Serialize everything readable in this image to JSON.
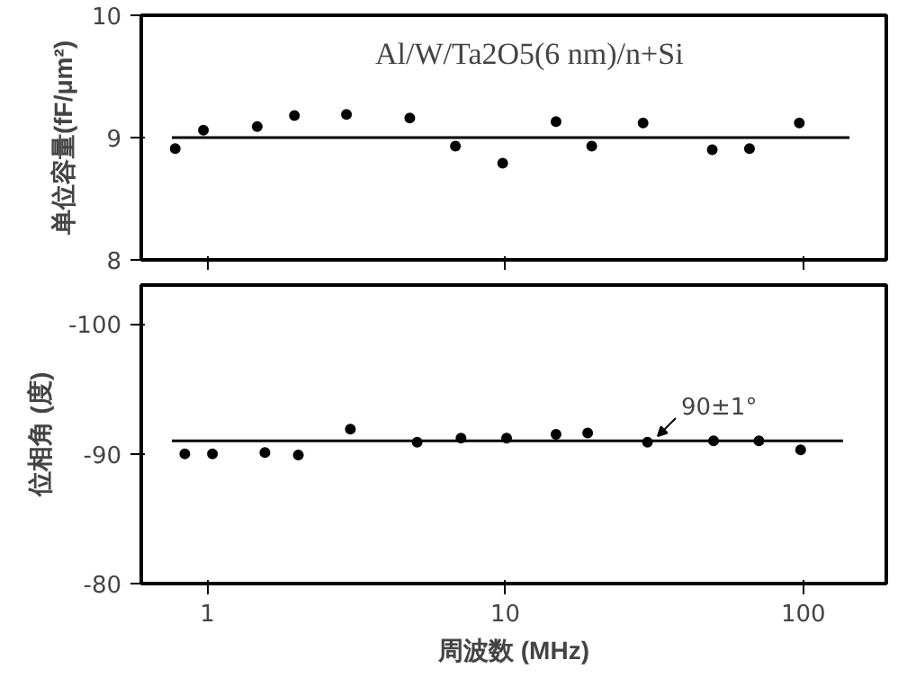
{
  "chart_data": [
    {
      "type": "scatter",
      "annotations": [
        "Al/W/Ta2O5(6 nm)/n+Si"
      ],
      "ylabel": "单位容量(fF/μm²)",
      "xlim": [
        0.6,
        190
      ],
      "log": "x",
      "xticks": [
        1,
        10,
        100
      ],
      "ylim": [
        8,
        10
      ],
      "yticks": [
        8,
        9,
        10
      ],
      "tick_labels": "y",
      "grid": false,
      "marker": "circle",
      "series": [
        {
          "color": "#000000",
          "x": [
            0.78,
            0.97,
            1.47,
            1.96,
            2.93,
            4.78,
            6.8,
            9.8,
            14.8,
            19.5,
            29,
            49.5,
            66,
            97
          ],
          "values": [
            8.91,
            9.06,
            9.09,
            9.18,
            9.19,
            9.16,
            8.93,
            8.79,
            9.13,
            8.93,
            9.12,
            8.9,
            8.91,
            9.12
          ]
        },
        {
          "type": "line",
          "marker": "none",
          "color": "#000000",
          "x": [
            0.76,
            143
          ],
          "values": [
            9,
            9
          ]
        }
      ]
    },
    {
      "type": "scatter",
      "annotations": [
        "90±1°"
      ],
      "xlabel": "周波数 (MHz)",
      "ylabel": "位相角 (度)",
      "xlim": [
        0.6,
        190
      ],
      "log": "x",
      "xticks": [
        1,
        10,
        100
      ],
      "ylim": [
        -80,
        -103
      ],
      "yticks": [
        -100,
        -90,
        -80
      ],
      "grid": false,
      "marker": "circle",
      "series": [
        {
          "color": "#000000",
          "x": [
            0.84,
            1.04,
            1.56,
            2.02,
            3.02,
            5.06,
            7.1,
            10.1,
            14.8,
            18.9,
            30,
            50,
            71,
            98
          ],
          "values": [
            -90,
            -90,
            -90.1,
            -89.9,
            -91.9,
            -90.9,
            -91.2,
            -91.2,
            -91.5,
            -91.6,
            -90.9,
            -91,
            -91,
            -90.3
          ]
        },
        {
          "type": "line",
          "marker": "none",
          "color": "#000000",
          "x": [
            0.76,
            136
          ],
          "values": [
            -91,
            -91
          ]
        }
      ]
    }
  ]
}
